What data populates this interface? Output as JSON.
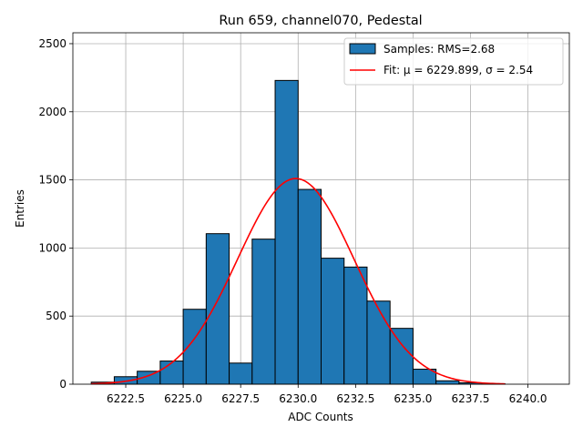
{
  "chart_data": {
    "type": "bar",
    "title": "Run 659, channel070, Pedestal",
    "xlabel": "ADC Counts",
    "ylabel": "Entries",
    "xlim": [
      6220.2,
      6241.8
    ],
    "ylim": [
      0,
      2580
    ],
    "grid": true,
    "legend_position": "top-right",
    "xticks": [
      "6222.5",
      "6225.0",
      "6227.5",
      "6230.0",
      "6232.5",
      "6235.0",
      "6237.5",
      "6240.0"
    ],
    "xtick_values": [
      6222.5,
      6225.0,
      6227.5,
      6230.0,
      6232.5,
      6235.0,
      6237.5,
      6240.0
    ],
    "yticks": [
      "0",
      "500",
      "1000",
      "1500",
      "2000",
      "2500"
    ],
    "ytick_values": [
      0,
      500,
      1000,
      1500,
      2000,
      2500
    ],
    "bins": [
      {
        "x0": 6221.0,
        "x1": 6222.0,
        "value": 15
      },
      {
        "x0": 6222.0,
        "x1": 6223.0,
        "value": 55
      },
      {
        "x0": 6223.0,
        "x1": 6224.0,
        "value": 95
      },
      {
        "x0": 6224.0,
        "x1": 6225.0,
        "value": 170
      },
      {
        "x0": 6225.0,
        "x1": 6226.0,
        "value": 550
      },
      {
        "x0": 6226.0,
        "x1": 6227.0,
        "value": 1105
      },
      {
        "x0": 6227.0,
        "x1": 6228.0,
        "value": 155
      },
      {
        "x0": 6228.0,
        "x1": 6229.0,
        "value": 1065
      },
      {
        "x0": 6229.0,
        "x1": 6230.0,
        "value": 2230
      },
      {
        "x0": 6230.0,
        "x1": 6231.0,
        "value": 1430
      },
      {
        "x0": 6231.0,
        "x1": 6232.0,
        "value": 925
      },
      {
        "x0": 6232.0,
        "x1": 6233.0,
        "value": 860
      },
      {
        "x0": 6233.0,
        "x1": 6234.0,
        "value": 610
      },
      {
        "x0": 6234.0,
        "x1": 6235.0,
        "value": 410
      },
      {
        "x0": 6235.0,
        "x1": 6236.0,
        "value": 110
      },
      {
        "x0": 6236.0,
        "x1": 6237.0,
        "value": 25
      },
      {
        "x0": 6237.0,
        "x1": 6238.0,
        "value": 10
      },
      {
        "x0": 6238.0,
        "x1": 6239.0,
        "value": 3
      }
    ],
    "fit": {
      "mu": 6229.899,
      "sigma": 2.54,
      "amplitude": 1510,
      "x_range": [
        6221.0,
        6239.0
      ]
    },
    "series": [
      {
        "name": "Samples: RMS=2.68",
        "kind": "histogram",
        "color": "#1f77b4",
        "edge_color": "#000000"
      },
      {
        "name": "Fit: μ = 6229.899, σ = 2.54",
        "kind": "line",
        "color": "#ff0000"
      }
    ],
    "colors": {
      "grid": "#b0b0b0",
      "axes": "#000000"
    }
  }
}
